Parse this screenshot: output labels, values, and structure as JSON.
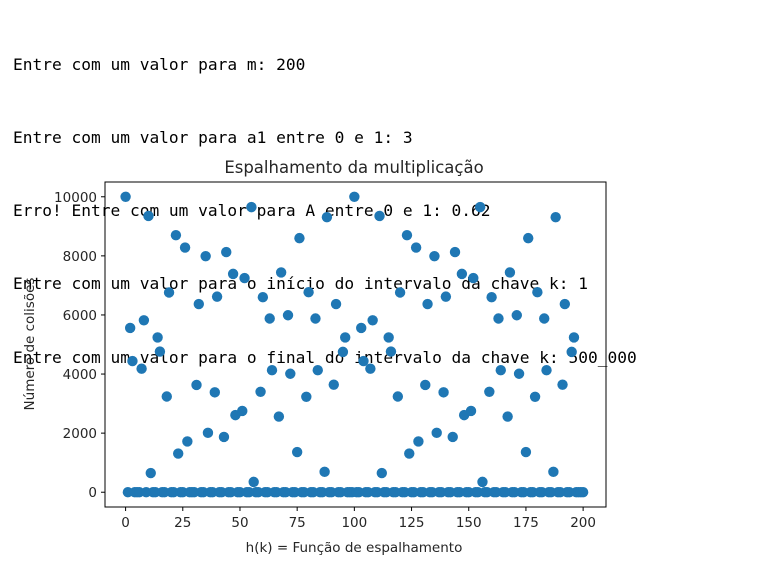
{
  "console": {
    "lines": [
      "Entre com um valor para m: 200",
      "Entre com um valor para a1 entre 0 e 1: 3",
      "Erro! Entre com um valor para A entre 0 e 1: 0.62",
      "Entre com um valor para o início do intervalo da chave k: 1",
      "Entre com um valor para o final do intervalo da chave k: 500_000"
    ]
  },
  "chart_data": {
    "type": "scatter",
    "title": "Espalhamento da multiplicação",
    "xlabel": "h(k) = Função de espalhamento",
    "ylabel": "Número de colisões",
    "xlim": [
      -9,
      210
    ],
    "ylim": [
      -500,
      10500
    ],
    "xticks": [
      0,
      25,
      50,
      75,
      100,
      125,
      150,
      175,
      200
    ],
    "yticks": [
      0,
      2000,
      4000,
      6000,
      8000,
      10000
    ],
    "grid": false,
    "legend": "none",
    "marker_color": "#1f77b4",
    "points_high": [
      [
        0,
        10000
      ],
      [
        2,
        5560
      ],
      [
        3,
        4440
      ],
      [
        7,
        4180
      ],
      [
        8,
        5820
      ],
      [
        10,
        9350
      ],
      [
        11,
        650
      ],
      [
        14,
        5240
      ],
      [
        15,
        4760
      ],
      [
        18,
        3240
      ],
      [
        19,
        6760
      ],
      [
        22,
        8700
      ],
      [
        23,
        1310
      ],
      [
        26,
        8280
      ],
      [
        27,
        1720
      ],
      [
        31,
        3630
      ],
      [
        32,
        6370
      ],
      [
        35,
        7990
      ],
      [
        36,
        2010
      ],
      [
        39,
        3380
      ],
      [
        40,
        6620
      ],
      [
        43,
        1870
      ],
      [
        44,
        8130
      ],
      [
        47,
        7390
      ],
      [
        48,
        2610
      ],
      [
        51,
        2750
      ],
      [
        52,
        7250
      ],
      [
        55,
        9650
      ],
      [
        56,
        350
      ],
      [
        59,
        3400
      ],
      [
        60,
        6600
      ],
      [
        63,
        5880
      ],
      [
        64,
        4130
      ],
      [
        67,
        2560
      ],
      [
        68,
        7440
      ],
      [
        71,
        5990
      ],
      [
        72,
        4010
      ],
      [
        75,
        1360
      ],
      [
        76,
        8600
      ],
      [
        79,
        3230
      ],
      [
        80,
        6770
      ],
      [
        83,
        5880
      ],
      [
        84,
        4130
      ],
      [
        87,
        690
      ],
      [
        88,
        9310
      ],
      [
        91,
        3640
      ],
      [
        92,
        6370
      ],
      [
        95,
        4750
      ],
      [
        96,
        5240
      ],
      [
        100,
        10000
      ],
      [
        103,
        5560
      ],
      [
        104,
        4440
      ],
      [
        107,
        4180
      ],
      [
        108,
        5820
      ],
      [
        111,
        9350
      ],
      [
        112,
        650
      ],
      [
        115,
        5240
      ],
      [
        116,
        4760
      ],
      [
        119,
        3240
      ],
      [
        120,
        6760
      ],
      [
        123,
        8700
      ],
      [
        124,
        1310
      ],
      [
        127,
        8280
      ],
      [
        128,
        1720
      ],
      [
        131,
        3630
      ],
      [
        132,
        6370
      ],
      [
        135,
        7990
      ],
      [
        136,
        2010
      ],
      [
        139,
        3380
      ],
      [
        140,
        6620
      ],
      [
        143,
        1870
      ],
      [
        144,
        8130
      ],
      [
        147,
        7390
      ],
      [
        148,
        2610
      ],
      [
        151,
        2750
      ],
      [
        152,
        7250
      ],
      [
        155,
        9650
      ],
      [
        156,
        350
      ],
      [
        159,
        3400
      ],
      [
        160,
        6600
      ],
      [
        163,
        5880
      ],
      [
        164,
        4130
      ],
      [
        167,
        2560
      ],
      [
        168,
        7440
      ],
      [
        171,
        5990
      ],
      [
        172,
        4010
      ],
      [
        175,
        1360
      ],
      [
        176,
        8600
      ],
      [
        179,
        3230
      ],
      [
        180,
        6770
      ],
      [
        183,
        5880
      ],
      [
        184,
        4130
      ],
      [
        187,
        690
      ],
      [
        188,
        9310
      ],
      [
        191,
        3640
      ],
      [
        192,
        6370
      ],
      [
        195,
        4750
      ],
      [
        196,
        5240
      ]
    ],
    "points_zero": {
      "x_start": 0,
      "x_end": 200,
      "y": 0,
      "exclude_x": [
        0,
        2,
        3,
        7,
        8,
        10,
        11,
        14,
        15,
        18,
        19,
        22,
        23,
        26,
        27,
        31,
        32,
        35,
        36,
        39,
        40,
        43,
        44,
        47,
        48,
        51,
        52,
        55,
        56,
        59,
        60,
        63,
        64,
        67,
        68,
        71,
        72,
        75,
        76,
        79,
        80,
        83,
        84,
        87,
        88,
        91,
        92,
        95,
        96,
        100,
        103,
        104,
        107,
        108,
        111,
        112,
        115,
        116,
        119,
        120,
        123,
        124,
        127,
        128,
        131,
        132,
        135,
        136,
        139,
        140,
        143,
        144,
        147,
        148,
        151,
        152,
        155,
        156,
        159,
        160,
        163,
        164,
        167,
        168,
        171,
        172,
        175,
        176,
        179,
        180,
        183,
        184,
        187,
        188,
        191,
        192,
        195,
        196
      ]
    }
  }
}
